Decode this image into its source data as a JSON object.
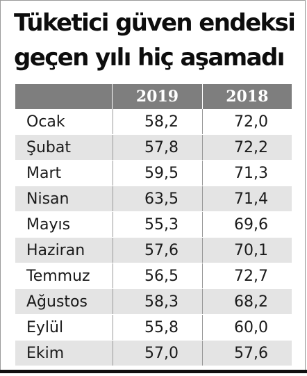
{
  "title": {
    "line1": "Tüketici güven endeksi",
    "line2": "geçen yılı hiç aşamadı"
  },
  "colors": {
    "header_bg": "#7e7e7e",
    "row_shade": "#e4e4e4",
    "text": "#1a1a1a"
  },
  "chart_data": {
    "type": "table",
    "title": "Tüketici güven endeksi geçen yılı hiç aşamadı",
    "columns": [
      "2019",
      "2018"
    ],
    "rows": [
      {
        "month": "Ocak",
        "values": [
          "58,2",
          "72,0"
        ]
      },
      {
        "month": "Şubat",
        "values": [
          "57,8",
          "72,2"
        ]
      },
      {
        "month": "Mart",
        "values": [
          "59,5",
          "71,3"
        ]
      },
      {
        "month": "Nisan",
        "values": [
          "63,5",
          "71,4"
        ]
      },
      {
        "month": "Mayıs",
        "values": [
          "55,3",
          "69,6"
        ]
      },
      {
        "month": "Haziran",
        "values": [
          "57,6",
          "70,1"
        ]
      },
      {
        "month": "Temmuz",
        "values": [
          "56,5",
          "72,7"
        ]
      },
      {
        "month": "Ağustos",
        "values": [
          "58,3",
          "68,2"
        ]
      },
      {
        "month": "Eylül",
        "values": [
          "55,8",
          "60,0"
        ]
      },
      {
        "month": "Ekim",
        "values": [
          "57,0",
          "57,6"
        ]
      }
    ]
  }
}
